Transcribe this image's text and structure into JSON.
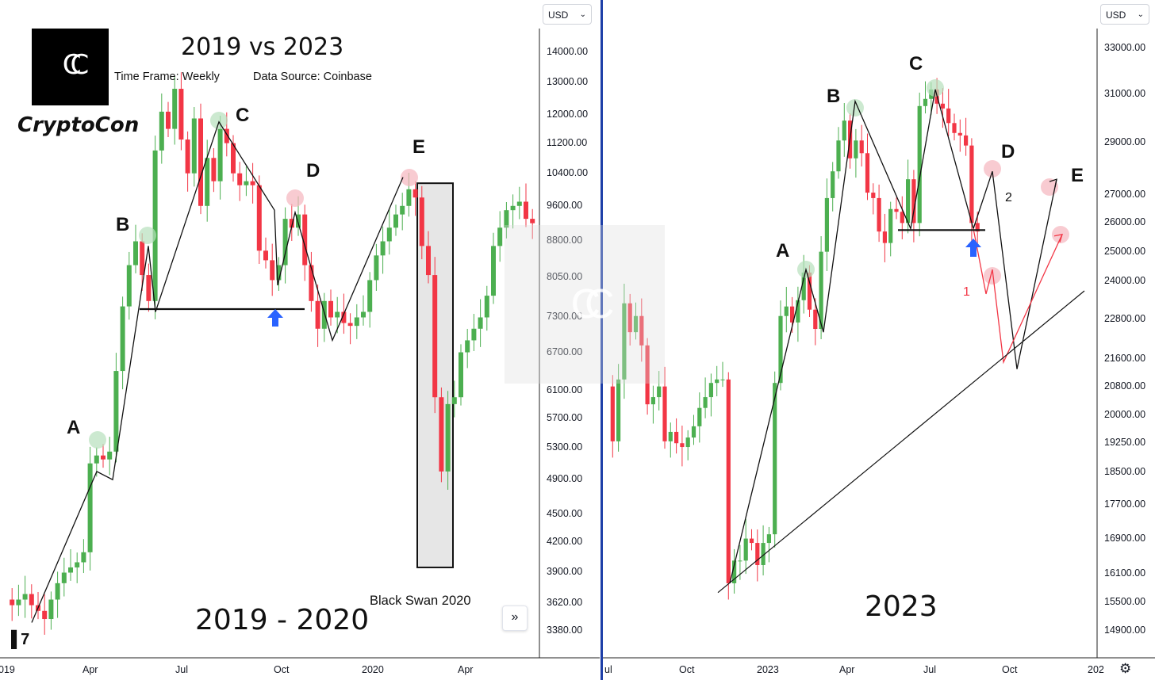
{
  "brand": {
    "logo_glyph": "CC",
    "name": "CryptoCon"
  },
  "header": {
    "title": "2019 vs 2023",
    "timeframe": "Time Frame: Weekly",
    "source": "Data Source: Coinbase"
  },
  "colors": {
    "up": "#4caf50",
    "down": "#f23645",
    "bg": "#ffffff",
    "divider": "#1e3fa8",
    "highlight_up": "#b7dfbc",
    "highlight_down": "#f5b5bd",
    "arrow": "#2962ff"
  },
  "icons": {
    "scroll": "double-chevron-right-icon",
    "settings": "gear-icon",
    "logo": "tradingview-logo-icon"
  },
  "chart_data": [
    {
      "type": "candlestick",
      "title": "2019 - 2020",
      "currency": "USD",
      "y_scale": "log",
      "y_ticks": [
        "14000.00",
        "13000.00",
        "12000.00",
        "11200.00",
        "10400.00",
        "9600.00",
        "8800.00",
        "8050.00",
        "7300.00",
        "6700.00",
        "6100.00",
        "5700.00",
        "5300.00",
        "4900.00",
        "4500.00",
        "4200.00",
        "3900.00",
        "3620.00",
        "3380.00"
      ],
      "x_ticks": [
        "019",
        "Apr",
        "Jul",
        "Oct",
        "2020",
        "Apr"
      ],
      "wave_labels": [
        "A",
        "B",
        "C",
        "D",
        "E"
      ],
      "wave_path": [
        3450,
        5000,
        4900,
        8700,
        7400,
        11800,
        9500,
        7900,
        9450,
        6900,
        10300
      ],
      "support_level": 7450,
      "annotation": "Black Swan 2020",
      "black_swan_range": [
        3950,
        10150
      ],
      "close_series": [
        3650,
        3600,
        3650,
        3700,
        3600,
        3550,
        3480,
        3650,
        3800,
        3900,
        3950,
        4000,
        4100,
        5100,
        5200,
        5150,
        5250,
        6400,
        7500,
        8300,
        8800,
        8100,
        7600,
        11000,
        12100,
        11600,
        12800,
        11300,
        10400,
        11900,
        9600,
        10800,
        10200,
        11600,
        11200,
        10400,
        10100,
        10200,
        10100,
        8600,
        8400,
        8000,
        8300,
        9300,
        9100,
        9400,
        8300,
        7600,
        7100,
        7600,
        7300,
        7400,
        7200,
        7150,
        7300,
        7400,
        8000,
        8500,
        8800,
        9100,
        9400,
        9600,
        10000,
        9800,
        8700,
        8100,
        6000,
        5000,
        5900,
        6000,
        6700,
        6900,
        7100,
        7300,
        7700,
        8700,
        9100,
        9500,
        9600,
        9700,
        9300,
        9200
      ]
    },
    {
      "type": "candlestick",
      "title": "2023",
      "currency": "USD",
      "y_scale": "log",
      "y_ticks": [
        "33000.00",
        "31000.00",
        "29000.00",
        "27000.00",
        "26000.00",
        "25000.00",
        "24000.00",
        "22800.00",
        "21600.00",
        "20800.00",
        "20000.00",
        "19250.00",
        "18500.00",
        "17700.00",
        "16900.00",
        "16100.00",
        "15500.00",
        "14900.00"
      ],
      "x_ticks": [
        "ul",
        "Oct",
        "2023",
        "Apr",
        "Jul",
        "Oct",
        "202"
      ],
      "wave_labels": [
        "A",
        "B",
        "C",
        "D",
        "E"
      ],
      "scenario_labels": [
        "1",
        "2"
      ],
      "wave_path": [
        15900,
        24400,
        22400,
        30700,
        25800,
        31200,
        25800
      ],
      "projection_2": [
        25800,
        27900,
        21300,
        27600
      ],
      "projection_1": [
        25800,
        23600,
        24400,
        21500,
        25600
      ],
      "support_level": 25750,
      "trendline": [
        15700,
        23700
      ],
      "close_series": [
        20800,
        19300,
        21000,
        23300,
        22400,
        22900,
        22000,
        20300,
        20500,
        20800,
        19300,
        19550,
        19250,
        19150,
        19400,
        19700,
        20200,
        20500,
        20900,
        21000,
        21000,
        15900,
        16400,
        16400,
        16900,
        16800,
        16300,
        16800,
        17000,
        20900,
        22900,
        23200,
        22700,
        23400,
        24300,
        23100,
        22500,
        25000,
        26900,
        27900,
        29100,
        29900,
        28400,
        29100,
        28600,
        27100,
        26900,
        25700,
        25300,
        26500,
        26400,
        26000,
        27600,
        26000,
        30500,
        30800,
        31200,
        30600,
        30400,
        29800,
        29400,
        29300,
        28900,
        26000,
        25700
      ]
    }
  ]
}
